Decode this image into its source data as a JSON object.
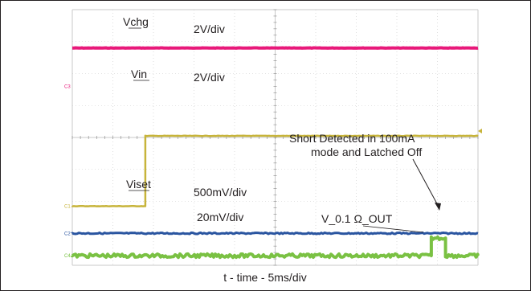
{
  "chart_data": {
    "type": "line",
    "title": "",
    "xlabel": "t - time - 5ms/div",
    "x_unit_per_div": "5ms",
    "x_divisions": 10,
    "y_divisions": 8,
    "grid": true,
    "colors": {
      "vchg": "#e8197a",
      "vin": "#c7b43a",
      "viset": "#2a55a0",
      "vout": "#7ac143",
      "grid": "#c8c8c8",
      "frame": "#231f20"
    },
    "series": [
      {
        "name": "Vchg",
        "scale": "2V/div",
        "channel": "C3",
        "ground_div": 5.6,
        "segments": [
          [
            0,
            10,
            1.2
          ]
        ]
      },
      {
        "name": "Vin",
        "scale": "2V/div",
        "channel": "C1",
        "ground_div": 1.85,
        "segments": [
          [
            0,
            1.8,
            0
          ],
          [
            1.8,
            10,
            2.2
          ]
        ]
      },
      {
        "name": "Viset",
        "scale": "500mV/div",
        "channel": "C2",
        "ground_div": 1.0,
        "segments": [
          [
            0,
            10,
            0
          ]
        ]
      },
      {
        "name": "V_0.1 Ω_OUT",
        "scale": "20mV/div",
        "channel": "C4",
        "ground_div": 0.3,
        "segments": [
          [
            0,
            8.85,
            0
          ],
          [
            8.85,
            9.2,
            0.55
          ],
          [
            9.2,
            10,
            0
          ]
        ]
      }
    ],
    "annotations": [
      {
        "text_line1": "Short Detected in 100mA",
        "text_line2": "mode and Latched Off"
      }
    ]
  }
}
